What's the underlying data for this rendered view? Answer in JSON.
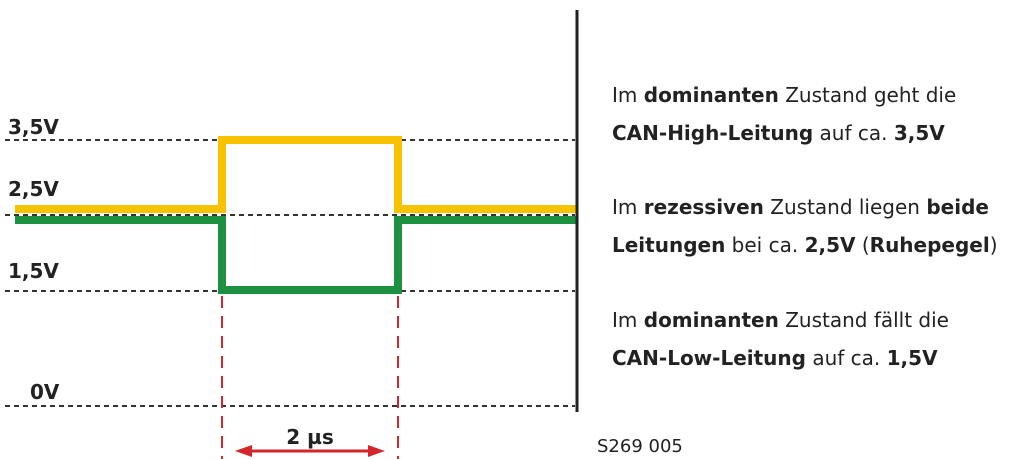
{
  "levels": [
    {
      "label": "3,5V"
    },
    {
      "label": "2,5V"
    },
    {
      "label": "1,5V"
    },
    {
      "label": "0V"
    }
  ],
  "duration": "2 µs",
  "paragraphs": [
    {
      "lines": [
        [
          {
            "text": "Im ",
            "bold": false
          },
          {
            "text": "dominanten",
            "bold": true
          },
          {
            "text": " Zustand geht die",
            "bold": false
          }
        ],
        [
          {
            "text": "CAN-High-Leitung",
            "bold": true
          },
          {
            "text": " auf ca. ",
            "bold": false
          },
          {
            "text": "3,5V",
            "bold": true
          }
        ]
      ]
    },
    {
      "lines": [
        [
          {
            "text": "Im ",
            "bold": false
          },
          {
            "text": "rezessiven",
            "bold": true
          },
          {
            "text": " Zustand liegen ",
            "bold": false
          },
          {
            "text": "beide",
            "bold": true
          }
        ],
        [
          {
            "text": "Leitungen",
            "bold": true
          },
          {
            "text": " bei ca. ",
            "bold": false
          },
          {
            "text": "2,5V",
            "bold": true
          },
          {
            "text": " (",
            "bold": false
          },
          {
            "text": "Ruhepegel",
            "bold": true
          },
          {
            "text": ")",
            "bold": false
          }
        ]
      ]
    },
    {
      "lines": [
        [
          {
            "text": "Im ",
            "bold": false
          },
          {
            "text": "dominanten",
            "bold": true
          },
          {
            "text": " Zustand fällt die",
            "bold": false
          }
        ],
        [
          {
            "text": "CAN-Low-Leitung",
            "bold": true
          },
          {
            "text": " auf ca. ",
            "bold": false
          },
          {
            "text": "1,5V",
            "bold": true
          }
        ]
      ]
    }
  ],
  "figure_id": "S269 005"
}
